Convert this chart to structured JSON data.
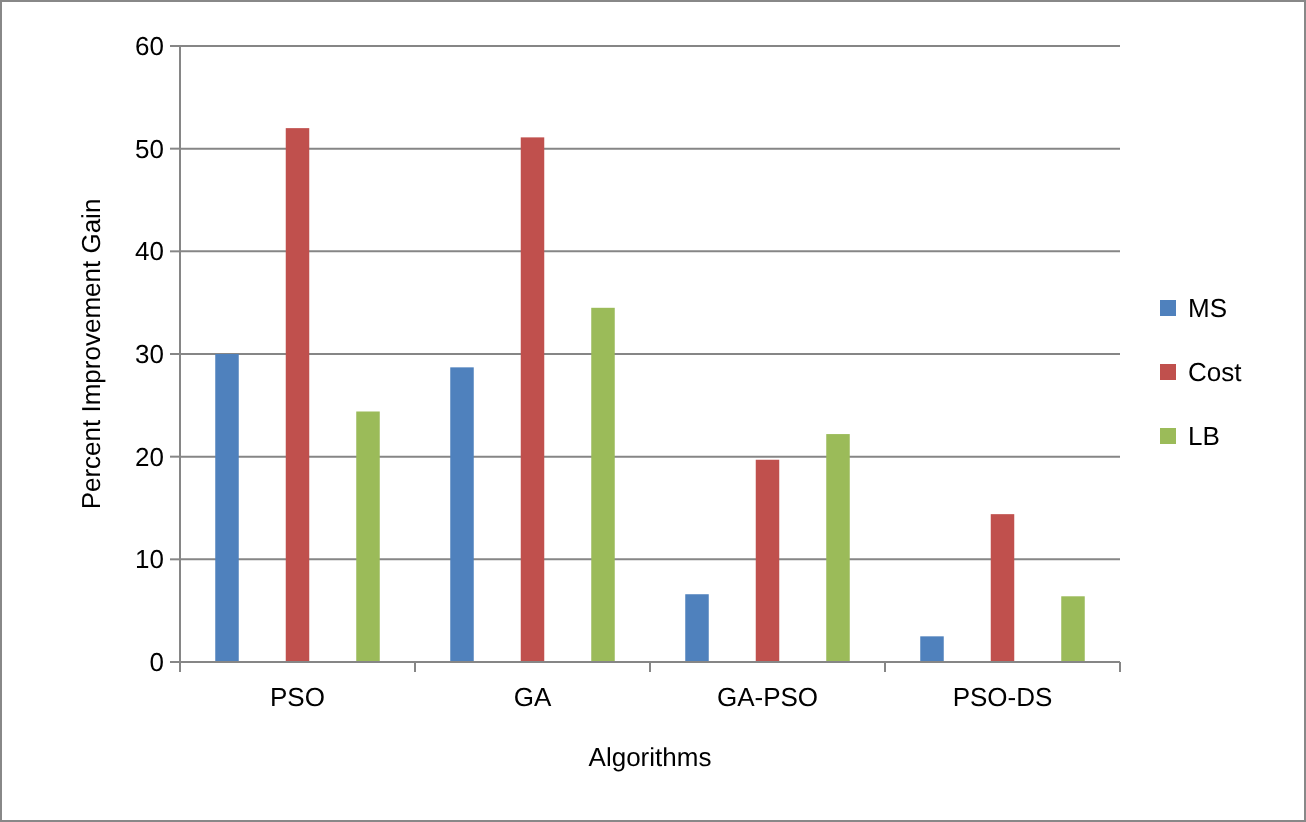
{
  "chart_data": {
    "type": "bar",
    "xlabel": "Algorithms",
    "ylabel": "Percent Improvement Gain",
    "categories": [
      "PSO",
      "GA",
      "GA-PSO",
      "PSO-DS"
    ],
    "series": [
      {
        "name": "MS",
        "color": "#4f81bd",
        "values": [
          30.0,
          28.7,
          6.6,
          2.5
        ]
      },
      {
        "name": "Cost",
        "color": "#c0504d",
        "values": [
          52.0,
          51.1,
          19.7,
          14.4
        ]
      },
      {
        "name": "LB",
        "color": "#9bbb59",
        "values": [
          24.4,
          34.5,
          22.2,
          6.4
        ]
      }
    ],
    "ylim": [
      0,
      60
    ],
    "yticks": [
      0,
      10,
      20,
      30,
      40,
      50,
      60
    ],
    "grid": "y",
    "legend": "right"
  }
}
